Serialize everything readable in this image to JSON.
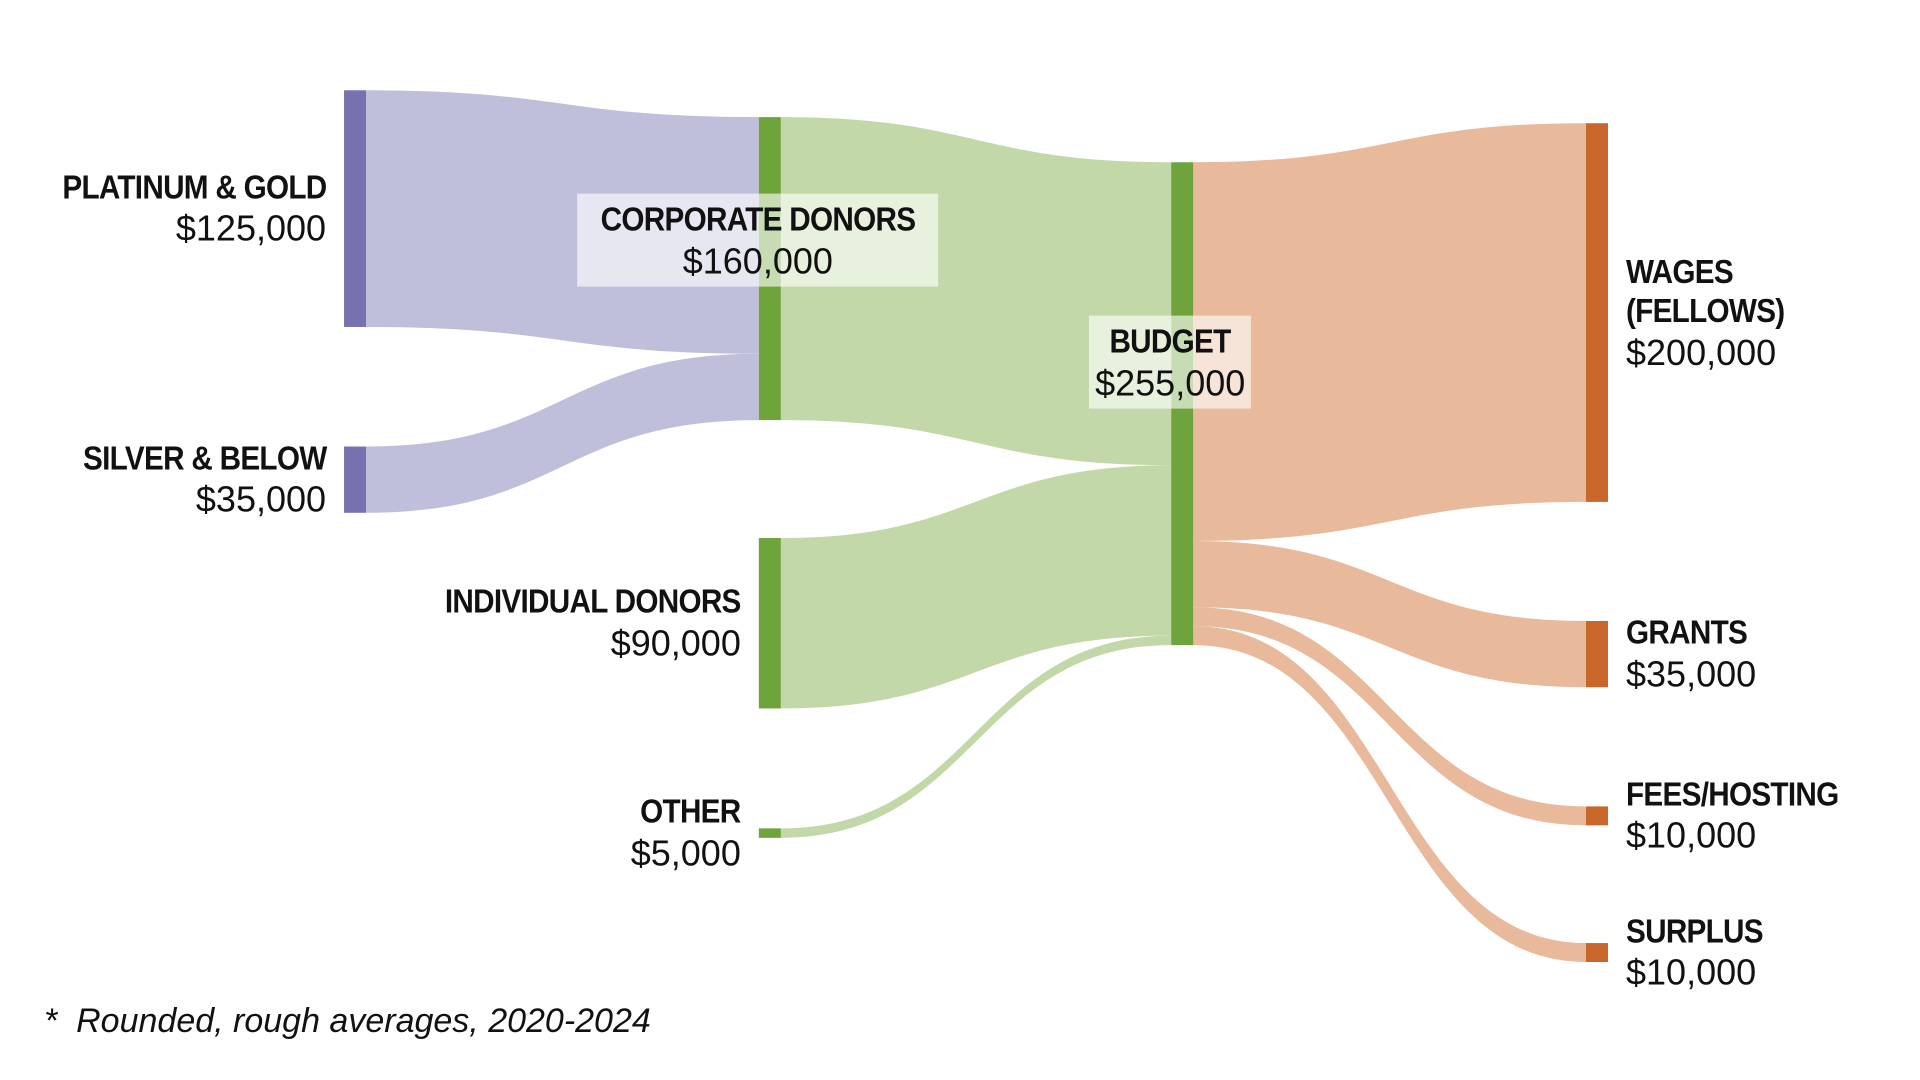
{
  "chart_data": {
    "type": "sankey",
    "nodes": [
      {
        "name": "PLATINUM & GOLD",
        "value": 125000,
        "value_label": "$125,000",
        "color": "#7672b2"
      },
      {
        "name": "SILVER & BELOW",
        "value": 35000,
        "value_label": "$35,000",
        "color": "#7672b2"
      },
      {
        "name": "CORPORATE DONORS",
        "value": 160000,
        "value_label": "$160,000",
        "color": "#6fa33b"
      },
      {
        "name": "INDIVIDUAL DONORS",
        "value": 90000,
        "value_label": "$90,000",
        "color": "#6fa33b"
      },
      {
        "name": "OTHER",
        "value": 5000,
        "value_label": "$5,000",
        "color": "#6fa33b"
      },
      {
        "name": "BUDGET",
        "value": 255000,
        "value_label": "$255,000",
        "color": "#6fa33b"
      },
      {
        "name": "WAGES (FELLOWS)",
        "value": 200000,
        "value_label": "$200,000",
        "color": "#c8662b"
      },
      {
        "name": "GRANTS",
        "value": 35000,
        "value_label": "$35,000",
        "color": "#c8662b"
      },
      {
        "name": "FEES/HOSTING",
        "value": 10000,
        "value_label": "$10,000",
        "color": "#c8662b"
      },
      {
        "name": "SURPLUS",
        "value": 10000,
        "value_label": "$10,000",
        "color": "#c8662b"
      }
    ],
    "links": [
      {
        "source": 0,
        "target": 2,
        "value": 125000,
        "color": "#bfbfdc"
      },
      {
        "source": 1,
        "target": 2,
        "value": 35000,
        "color": "#bfbfdc"
      },
      {
        "source": 2,
        "target": 5,
        "value": 160000,
        "color": "#c2d8a8"
      },
      {
        "source": 3,
        "target": 5,
        "value": 90000,
        "color": "#c2d8a8"
      },
      {
        "source": 4,
        "target": 5,
        "value": 5000,
        "color": "#c2d8a8"
      },
      {
        "source": 5,
        "target": 6,
        "value": 200000,
        "color": "#e8b99b"
      },
      {
        "source": 5,
        "target": 7,
        "value": 35000,
        "color": "#e8b99b"
      },
      {
        "source": 5,
        "target": 8,
        "value": 10000,
        "color": "#e8b99b"
      },
      {
        "source": 5,
        "target": 9,
        "value": 10000,
        "color": "#e8b99b"
      }
    ],
    "footnote": "*  Rounded, rough averages, 2020-2024"
  }
}
